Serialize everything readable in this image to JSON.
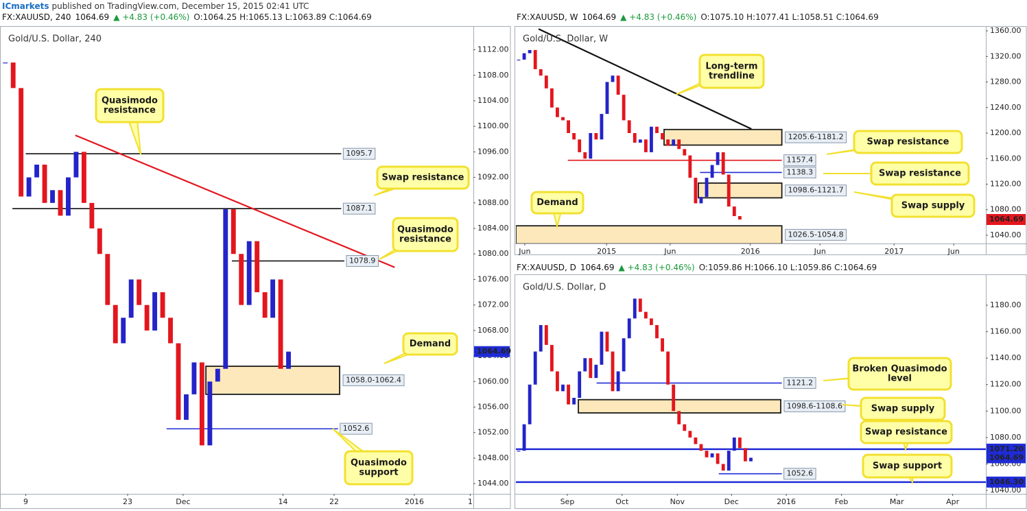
{
  "header": {
    "author": "ICmarkets",
    "published": "published on TradingView.com, December 15, 2015 02:41 UTC"
  },
  "chart_data": [
    {
      "type": "candlestick",
      "title": "Gold/U.S. Dollar, 240",
      "header": {
        "symbol": "FX:XAUUSD, 240",
        "last": "1064.69",
        "change": "▲ +4.83 (+0.46%)",
        "ohlc": "O:1064.25 H:1065.13 L:1063.89 C:1064.69"
      },
      "close": [
        1110,
        1106,
        1089,
        1092,
        1094,
        1088,
        1090,
        1086,
        1092,
        1096,
        1088,
        1084,
        1080,
        1072,
        1066,
        1070,
        1076,
        1072,
        1068,
        1074,
        1070,
        1066,
        1054,
        1058,
        1063,
        1050,
        1060,
        1062,
        1087,
        1080,
        1072,
        1082,
        1074,
        1070,
        1076,
        1062,
        1064.69
      ],
      "up_color": "#2424c8",
      "down_color": "#e3161e",
      "xlim": [
        0,
        60
      ],
      "xticks": [
        {
          "value": 3.1,
          "label": "9"
        },
        {
          "value": 16.05,
          "label": "23"
        },
        {
          "value": 23.1,
          "label": "Dec"
        },
        {
          "value": 35.8,
          "label": "14"
        },
        {
          "value": 42.3,
          "label": "22"
        },
        {
          "value": 52.5,
          "label": "2016"
        },
        {
          "value": 59.6,
          "label": "1"
        }
      ],
      "ylim": [
        1042.4,
        1115.5
      ],
      "yticks": [
        {
          "value": 1044,
          "label": "1044.00"
        },
        {
          "value": 1048,
          "label": "1048.00"
        },
        {
          "value": 1052,
          "label": "1052.00"
        },
        {
          "value": 1056,
          "label": "1056.00"
        },
        {
          "value": 1060,
          "label": "1060.00"
        },
        {
          "value": 1064,
          "label": "1064.00"
        },
        {
          "value": 1068,
          "label": "1068.00"
        },
        {
          "value": 1072,
          "label": "1072.00"
        },
        {
          "value": 1076,
          "label": "1076.00"
        },
        {
          "value": 1080,
          "label": "1080.00"
        },
        {
          "value": 1084,
          "label": "1084.00"
        },
        {
          "value": 1088,
          "label": "1088.00"
        },
        {
          "value": 1092,
          "label": "1092.00"
        },
        {
          "value": 1096,
          "label": "1096.00"
        },
        {
          "value": 1100,
          "label": "1100.00"
        },
        {
          "value": 1104,
          "label": "1104.00"
        },
        {
          "value": 1108,
          "label": "1108.00"
        },
        {
          "value": 1112,
          "label": "1112.00"
        }
      ],
      "levels": [
        {
          "value": 1095.7,
          "start": 3.1,
          "end": 43.2,
          "color": "#111111"
        },
        {
          "value": 1087.1,
          "start": 1.4,
          "end": 43.2,
          "color": "#111111"
        },
        {
          "value": 1078.9,
          "start": 29.3,
          "end": 43.6,
          "color": "#111111"
        },
        {
          "value": 1052.6,
          "start": 21.0,
          "end": 42.8,
          "color": "#1f2bd6"
        }
      ],
      "zones": [
        {
          "low": 1058.0,
          "high": 1062.4,
          "label": "1058.0-1062.4",
          "start": 26.0,
          "end": 43.0
        }
      ],
      "trendline": {
        "from": [
          9.4,
          1098.6
        ],
        "to": [
          50.0,
          1077.9
        ],
        "color": "#e3161e"
      },
      "price_tag": {
        "value": 1064.69,
        "color": "#1f2bd6"
      },
      "annotations": [
        {
          "lines": [
            "Quasimodo",
            "resistance"
          ]
        },
        {
          "lines": [
            "Swap resistance"
          ]
        },
        {
          "lines": [
            "Quasimodo",
            "resistance"
          ]
        },
        {
          "lines": [
            "Demand"
          ]
        },
        {
          "lines": [
            "Quasimodo",
            "support"
          ]
        }
      ]
    },
    {
      "type": "candlestick",
      "title": "Gold/U.S. Dollar, W",
      "header": {
        "symbol": "FX:XAUUSD, W",
        "last": "1064.69",
        "change": "▲ +4.83 (+0.46%)",
        "ohlc": "O:1075.10 H:1077.41 L:1058.51 C:1064.69"
      },
      "close": [
        1315,
        1325,
        1330,
        1300,
        1290,
        1270,
        1240,
        1225,
        1220,
        1200,
        1190,
        1170,
        1160,
        1200,
        1190,
        1230,
        1280,
        1290,
        1260,
        1220,
        1200,
        1185,
        1190,
        1170,
        1210,
        1200,
        1190,
        1180,
        1190,
        1175,
        1165,
        1130,
        1090,
        1100,
        1130,
        1150,
        1170,
        1135,
        1085,
        1070,
        1064.69
      ],
      "up_color": "#2424c8",
      "down_color": "#e3161e",
      "xlim": [
        0,
        85
      ],
      "xticks": [
        {
          "value": 1.6,
          "label": "Jun"
        },
        {
          "value": 16.4,
          "label": "2015"
        },
        {
          "value": 27.9,
          "label": "Jun"
        },
        {
          "value": 42.4,
          "label": "2016"
        },
        {
          "value": 55.0,
          "label": "Jun"
        },
        {
          "value": 68.4,
          "label": "2017"
        },
        {
          "value": 79.2,
          "label": "Jun"
        }
      ],
      "ylim": [
        1027.1,
        1365.4
      ],
      "yticks": [
        {
          "value": 1040,
          "label": "1040.00"
        },
        {
          "value": 1080,
          "label": "1080.00"
        },
        {
          "value": 1120,
          "label": "1120.00"
        },
        {
          "value": 1160,
          "label": "1160.00"
        },
        {
          "value": 1200,
          "label": "1200.00"
        },
        {
          "value": 1240,
          "label": "1240.00"
        },
        {
          "value": 1280,
          "label": "1280.00"
        },
        {
          "value": 1320,
          "label": "1320.00"
        },
        {
          "value": 1360,
          "label": "1360.00"
        }
      ],
      "levels": [
        {
          "value": 1157.4,
          "start": 9.4,
          "end": 48.1,
          "color": "#e3161e"
        },
        {
          "value": 1138.3,
          "start": 33.3,
          "end": 48.1,
          "color": "#1f2bd6"
        }
      ],
      "zones": [
        {
          "low": 1181.2,
          "high": 1205.6,
          "label": "1205.6-1181.2",
          "start": 26.8,
          "end": 48.1
        },
        {
          "low": 1098.6,
          "high": 1121.7,
          "label": "1098.6-1121.7",
          "start": 33.0,
          "end": 48.1
        },
        {
          "low": 1026.5,
          "high": 1054.8,
          "label": "1026.5-1054.8",
          "start": 0,
          "end": 48.1
        }
      ],
      "trendline": {
        "from": [
          4.1,
          1363
        ],
        "to": [
          42.6,
          1206.4
        ],
        "color": "#111111"
      },
      "price_tag": {
        "value": 1064.69,
        "color": "#e3161e"
      },
      "annotations": [
        {
          "lines": [
            "Long-term",
            "trendline"
          ]
        },
        {
          "lines": [
            "Swap resistance"
          ]
        },
        {
          "lines": [
            "Swap resistance"
          ]
        },
        {
          "lines": [
            "Swap supply"
          ]
        },
        {
          "lines": [
            "Demand"
          ]
        }
      ]
    },
    {
      "type": "candlestick",
      "title": "Gold/U.S. Dollar, D",
      "header": {
        "symbol": "FX:XAUUSD, D",
        "last": "1064.69",
        "change": "▲ +4.83 (+0.46%)",
        "ohlc": "O:1059.86 H:1066.10 L:1059.86 C:1064.69"
      },
      "close": [
        1070,
        1090,
        1120,
        1145,
        1165,
        1150,
        1130,
        1115,
        1120,
        1105,
        1110,
        1130,
        1140,
        1125,
        1135,
        1160,
        1145,
        1115,
        1130,
        1155,
        1170,
        1185,
        1175,
        1170,
        1165,
        1155,
        1145,
        1120,
        1100,
        1090,
        1085,
        1080,
        1075,
        1070,
        1065,
        1068,
        1060,
        1055,
        1070,
        1080,
        1072,
        1062,
        1064.69
      ],
      "up_color": "#2424c8",
      "down_color": "#e3161e",
      "xlim": [
        0,
        85
      ],
      "xticks": [
        {
          "value": 9.3,
          "label": "Sep"
        },
        {
          "value": 19.2,
          "label": "Oct"
        },
        {
          "value": 29.2,
          "label": "Nov"
        },
        {
          "value": 39.0,
          "label": "Dec"
        },
        {
          "value": 48.9,
          "label": "2016"
        },
        {
          "value": 58.9,
          "label": "Feb"
        },
        {
          "value": 68.9,
          "label": "Mar"
        },
        {
          "value": 79.0,
          "label": "Apr"
        }
      ],
      "ylim": [
        1037.4,
        1202.3
      ],
      "yticks": [
        {
          "value": 1040,
          "label": "1040.00"
        },
        {
          "value": 1060,
          "label": "1060.00"
        },
        {
          "value": 1080,
          "label": "1080.00"
        },
        {
          "value": 1100,
          "label": "1100.00"
        },
        {
          "value": 1120,
          "label": "1120.00"
        },
        {
          "value": 1140,
          "label": "1140.00"
        },
        {
          "value": 1160,
          "label": "1160.00"
        },
        {
          "value": 1180,
          "label": "1180.00"
        }
      ],
      "levels": [
        {
          "value": 1121.2,
          "start": 14.6,
          "end": 48.1,
          "color": "#1f2bd6"
        },
        {
          "value": 1071.2,
          "label": "1071.20",
          "start": 0,
          "end": 85,
          "color": "#1f2bd6",
          "tag": true
        },
        {
          "value": 1046.3,
          "label": "1046.30",
          "start": 0,
          "end": 85,
          "color": "#1f2bd6",
          "tag": true
        },
        {
          "value": 1052.6,
          "start": 36.7,
          "end": 48.1,
          "color": "#1f2bd6"
        }
      ],
      "zones": [
        {
          "low": 1098.6,
          "high": 1108.6,
          "label": "1098.6-1108.6",
          "start": 11.3,
          "end": 47.9
        }
      ],
      "price_tag": {
        "value": 1064.69,
        "color": "#1f2bd6"
      },
      "annotations": [
        {
          "lines": [
            "Broken Quasimodo",
            "level"
          ]
        },
        {
          "lines": [
            "Swap supply"
          ]
        },
        {
          "lines": [
            "Swap resistance"
          ]
        },
        {
          "lines": [
            "Swap support"
          ]
        }
      ]
    }
  ]
}
